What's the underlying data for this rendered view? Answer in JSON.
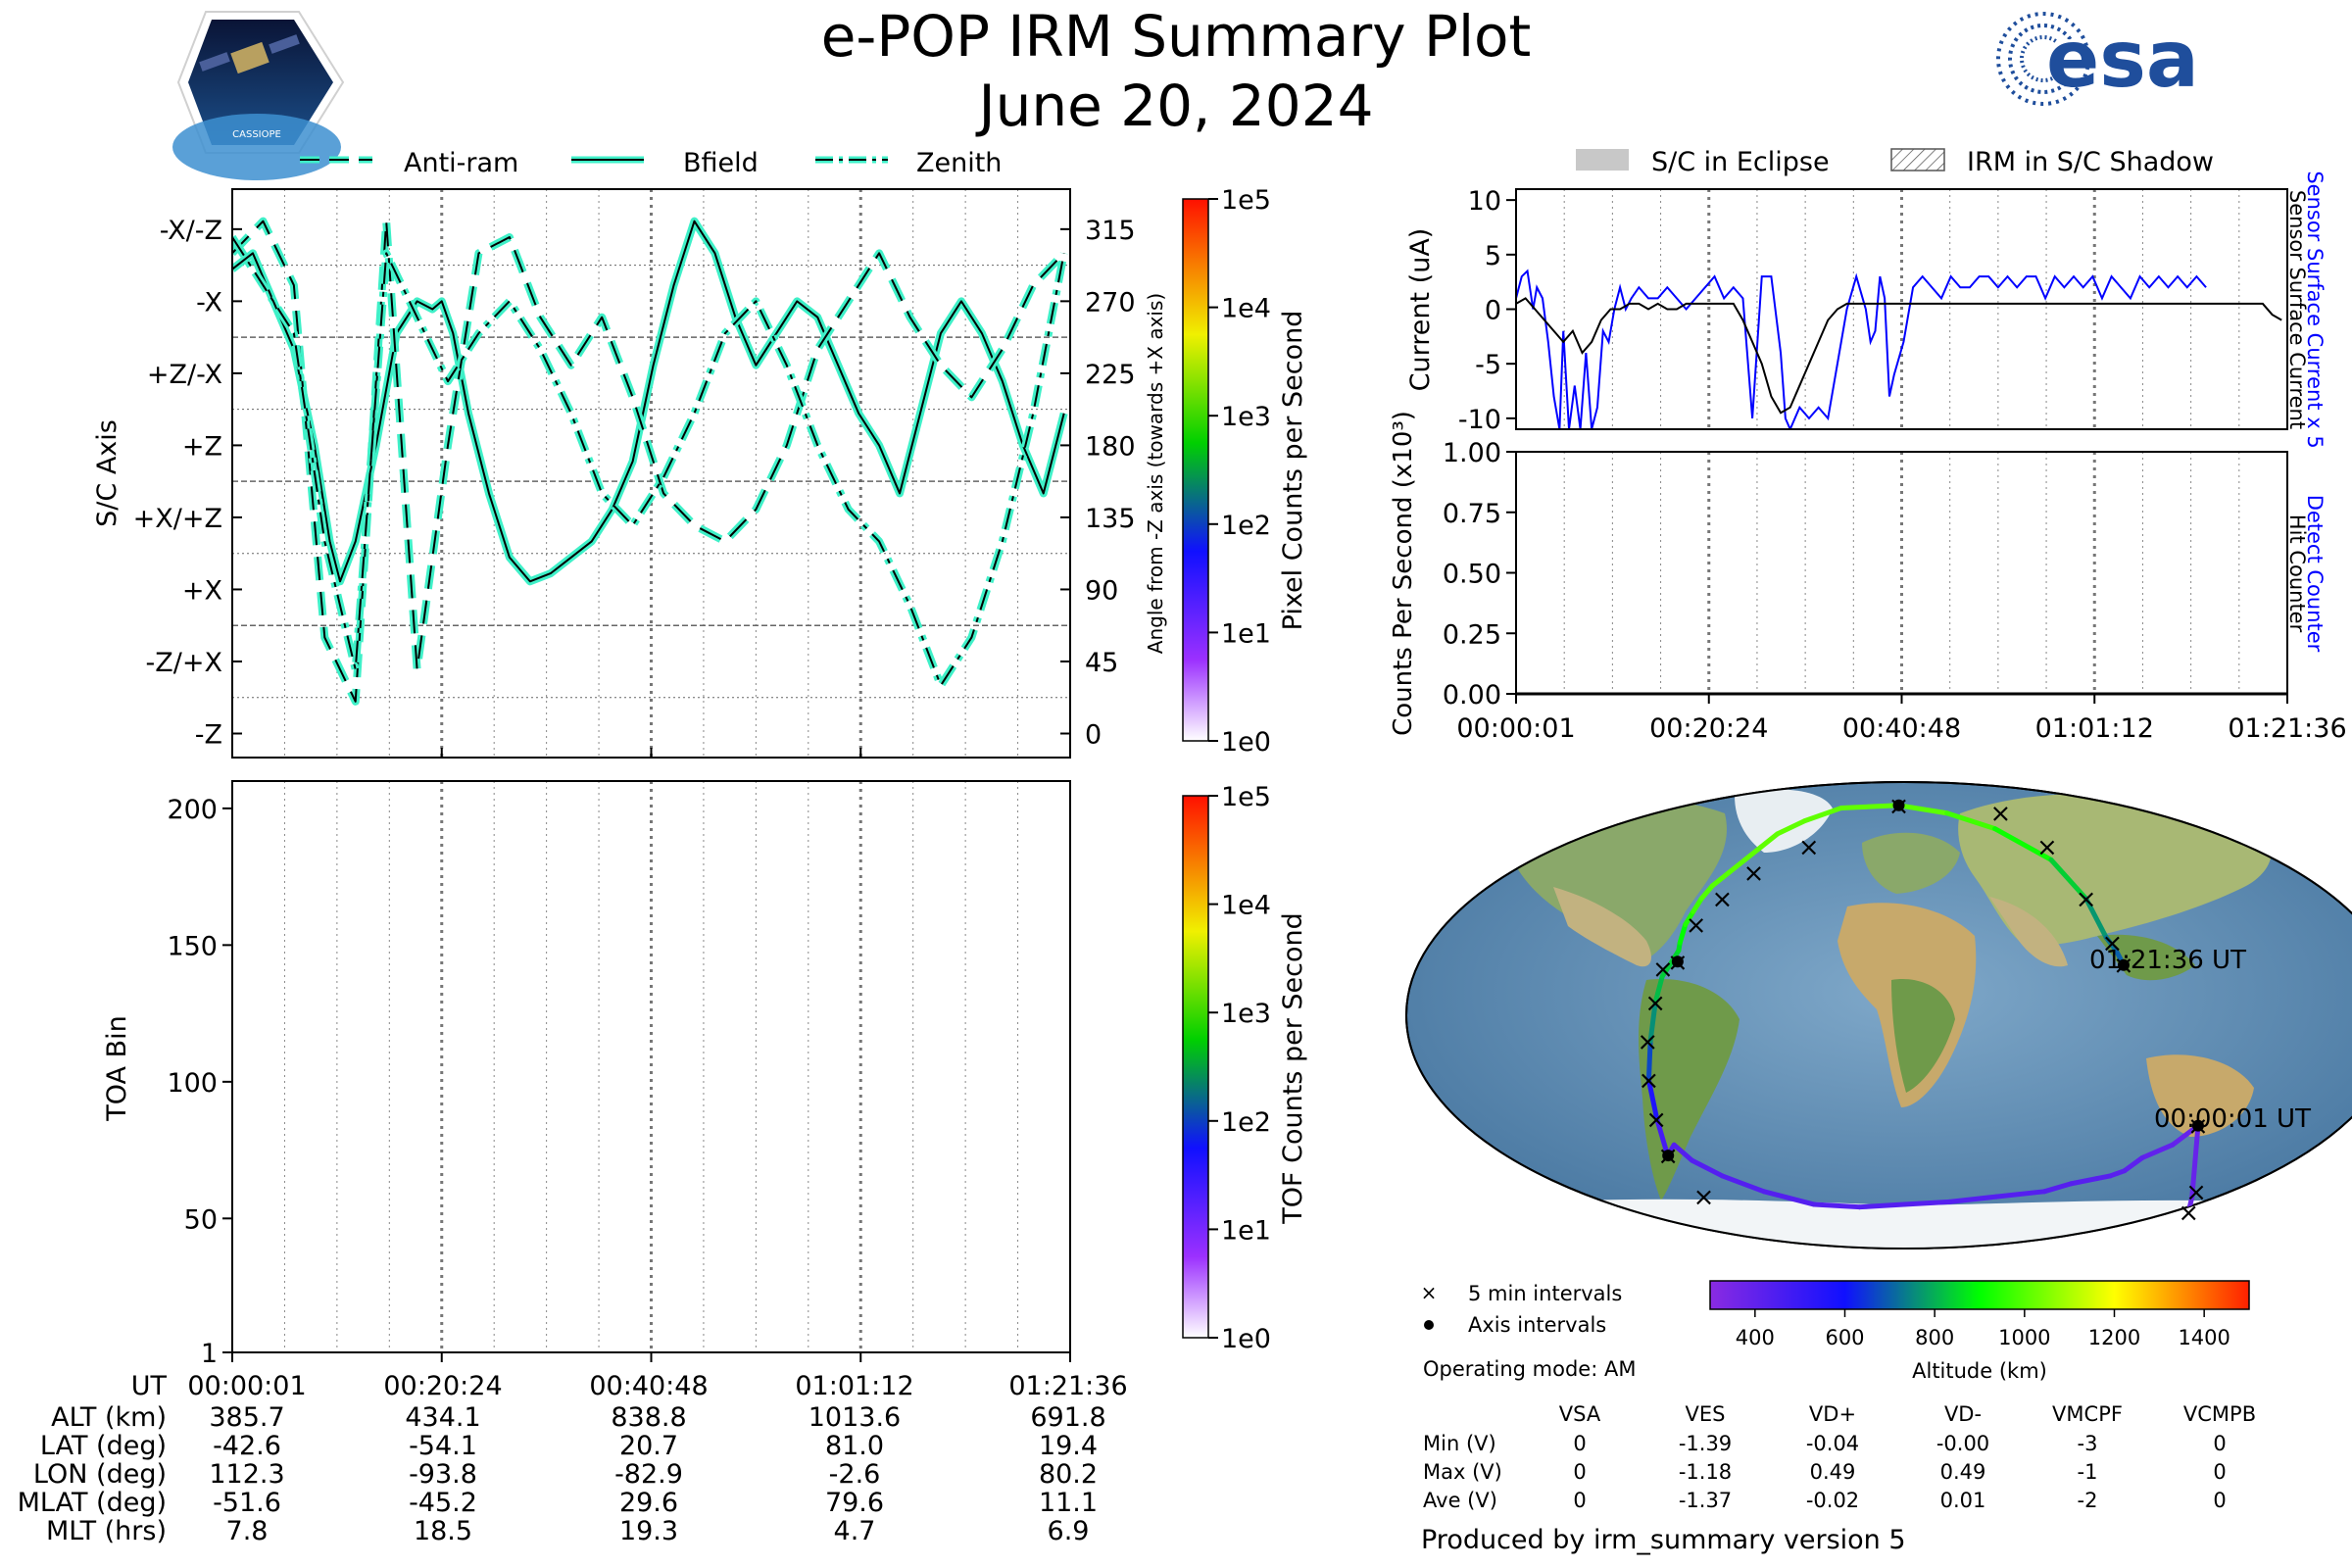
{
  "header": {
    "title": "e-POP IRM Summary Plot",
    "date": "June 20, 2024",
    "left_logo_text": "CASSIOPE",
    "right_logo_text": "esa"
  },
  "colors": {
    "trace": "#3ff0c8",
    "eclipse": "#c8c8c8",
    "sensor_current": "#0000ff",
    "hit_counter": "#000000"
  },
  "legend_top_left": [
    {
      "label": "Anti-ram",
      "style": "dashed"
    },
    {
      "label": "Bfield",
      "style": "solid"
    },
    {
      "label": "Zenith",
      "style": "dashdot"
    }
  ],
  "legend_top_right": [
    {
      "label": "S/C in Eclipse",
      "style": "filled"
    },
    {
      "label": "IRM in S/C Shadow",
      "style": "hatched"
    }
  ],
  "time_ticks": [
    "00:00:01",
    "00:20:24",
    "00:40:48",
    "01:01:12",
    "01:21:36"
  ],
  "chart_data": [
    {
      "type": "line",
      "name": "attitude",
      "ylabel": "S/C Axis",
      "ylabel_right": "Angle from -Z axis (towards +X axis)",
      "y_categories": [
        "-X/-Z",
        "-X",
        "+Z/-X",
        "+Z",
        "+X/+Z",
        "+X",
        "-Z/+X",
        "-Z"
      ],
      "y_right_ticks": [
        315,
        270,
        225,
        180,
        135,
        90,
        45,
        0
      ],
      "ylim": [
        -15,
        340
      ],
      "xlim": [
        0,
        81.6
      ],
      "colorbar_label": "Pixel Counts per Second",
      "colorbar_ticks": [
        "1e5",
        "1e4",
        "1e3",
        "1e2",
        "1e1",
        "1e0"
      ],
      "series": [
        {
          "name": "Bfield",
          "style": "solid",
          "x": [
            0,
            2,
            4,
            6,
            8,
            9.5,
            10.5,
            12,
            14,
            16,
            18,
            19.5,
            20.4,
            21.5,
            23,
            25,
            27,
            29,
            31,
            33,
            35,
            37,
            39,
            41,
            43,
            45,
            47,
            49,
            51,
            53,
            55,
            57,
            59,
            61,
            63,
            65,
            67,
            69,
            71,
            73,
            75,
            77,
            79,
            81
          ],
          "y": [
            290,
            300,
            270,
            240,
            180,
            120,
            95,
            120,
            180,
            250,
            270,
            265,
            270,
            250,
            200,
            150,
            110,
            95,
            100,
            110,
            120,
            140,
            170,
            230,
            280,
            320,
            300,
            260,
            230,
            250,
            270,
            260,
            230,
            200,
            180,
            150,
            200,
            250,
            270,
            250,
            220,
            180,
            150,
            200
          ]
        },
        {
          "name": "Anti-ram",
          "style": "dashed",
          "x": [
            0,
            3,
            6,
            9,
            12,
            15,
            18,
            21,
            24,
            27,
            30,
            33,
            36,
            39,
            42,
            45,
            48,
            51,
            54,
            57,
            60,
            63,
            66,
            69,
            72,
            75,
            78,
            81
          ],
          "y": [
            300,
            320,
            280,
            60,
            20,
            320,
            40,
            180,
            300,
            310,
            260,
            230,
            260,
            210,
            150,
            130,
            120,
            140,
            180,
            240,
            270,
            300,
            260,
            230,
            210,
            240,
            280,
            300
          ]
        },
        {
          "name": "Zenith",
          "style": "dashdot",
          "x": [
            0,
            3,
            6,
            9,
            12,
            15,
            18,
            21,
            24,
            27,
            30,
            33,
            36,
            39,
            42,
            45,
            48,
            51,
            54,
            57,
            60,
            63,
            66,
            69,
            72,
            75,
            78,
            81
          ],
          "y": [
            310,
            280,
            250,
            120,
            40,
            300,
            260,
            220,
            250,
            270,
            240,
            200,
            150,
            130,
            160,
            200,
            250,
            270,
            230,
            180,
            140,
            120,
            80,
            30,
            60,
            120,
            200,
            300
          ]
        }
      ]
    },
    {
      "type": "heatmap",
      "name": "tof",
      "ylabel": "TOA Bin",
      "y_ticks": [
        1,
        50,
        100,
        150,
        200
      ],
      "ylim": [
        1,
        210
      ],
      "xlim": [
        0,
        81.6
      ],
      "colorbar_label": "TOF Counts per Second",
      "colorbar_ticks": [
        "1e5",
        "1e4",
        "1e3",
        "1e2",
        "1e1",
        "1e0"
      ],
      "values": []
    },
    {
      "type": "line",
      "name": "current",
      "ylabel": "Current (uA)",
      "ylabel_right_1": "Sensor Surface Current x 5",
      "ylabel_right_2": "Sensor Surface Current",
      "y_ticks": [
        10,
        5,
        0,
        -5,
        -10
      ],
      "ylim": [
        -11,
        11
      ],
      "xlim": [
        0,
        81.6
      ],
      "series": [
        {
          "name": "Sensor Surface Current x 5",
          "color": "#0000ff",
          "x": [
            0,
            0.6,
            1.2,
            1.8,
            2.2,
            2.8,
            3.4,
            4.0,
            4.6,
            5.0,
            5.6,
            6.2,
            6.8,
            7.4,
            8.0,
            8.6,
            9.2,
            9.8,
            10.4,
            11.0,
            11.6,
            12.2,
            13.0,
            14.0,
            15.0,
            16.0,
            17.0,
            18.0,
            19.0,
            20.0,
            21.0,
            22.0,
            23.0,
            24.0,
            25.0,
            26.0,
            27.0,
            28.0,
            28.5,
            29.0,
            30.0,
            31.0,
            32.0,
            33.0,
            34.0,
            35.0,
            36.0,
            37.0,
            37.5,
            38.0,
            38.5,
            39.0,
            39.5,
            40.0,
            41.0,
            42.0,
            43.0,
            44.0,
            45.0,
            46.0,
            47.0,
            48.0,
            49.0,
            50.0,
            51.0,
            52.0,
            53.0,
            54.0,
            55.0,
            56.0,
            57.0,
            58.0,
            59.0,
            60.0,
            61.0,
            62.0,
            63.0,
            64.0,
            65.0,
            66.0,
            67.0,
            68.0,
            69.0,
            70.0,
            71.0,
            72.0,
            73.0
          ],
          "y": [
            1,
            3,
            3.5,
            0,
            2,
            1,
            -3,
            -8,
            -11,
            -2,
            -11,
            -7,
            -11,
            -4,
            -11,
            -9,
            -2,
            -3,
            0,
            2,
            0,
            1,
            2,
            1,
            1,
            2,
            1,
            0,
            1,
            2,
            3,
            1,
            2,
            1,
            -10,
            3,
            3,
            -4,
            -10,
            -11,
            -9,
            -10,
            -9,
            -10,
            -5,
            0,
            3,
            0,
            -3,
            -2,
            3,
            1,
            -8,
            -6,
            -3,
            2,
            3,
            2,
            1,
            3,
            2,
            2,
            3,
            3,
            2,
            3,
            2,
            3,
            3,
            1,
            3,
            2,
            3,
            2,
            3,
            1,
            3,
            2,
            1,
            3,
            2,
            3,
            2,
            3,
            2,
            3,
            2
          ]
        },
        {
          "name": "Sensor Surface Current",
          "color": "#000000",
          "x": [
            0,
            1,
            2,
            3,
            4,
            5,
            6,
            7,
            8,
            9,
            10,
            11,
            12,
            13,
            14,
            15,
            16,
            17,
            18,
            19,
            20,
            21,
            22,
            23,
            24,
            25,
            26,
            27,
            28,
            29,
            30,
            31,
            32,
            33,
            34,
            35,
            36,
            37,
            38,
            39,
            40,
            41,
            42,
            43,
            44,
            45,
            46,
            47,
            48,
            49,
            50,
            51,
            52,
            53,
            54,
            55,
            56,
            57,
            58,
            59,
            60,
            61,
            62,
            63,
            64,
            65,
            66,
            67,
            68,
            69,
            70,
            71,
            72,
            73,
            74,
            75,
            76,
            77,
            78,
            79,
            80,
            81
          ],
          "y": [
            0.5,
            1,
            0,
            -1,
            -2,
            -3,
            -2,
            -4,
            -3,
            -1,
            0,
            0,
            0.5,
            0.5,
            0,
            0.5,
            0,
            0,
            0.5,
            0.5,
            0.5,
            0.5,
            0.5,
            0.5,
            -1,
            -3,
            -5,
            -8,
            -9.5,
            -9,
            -7,
            -5,
            -3,
            -1,
            0,
            0.5,
            0.5,
            0.5,
            0.5,
            0.5,
            0.5,
            0.5,
            0.5,
            0.5,
            0.5,
            0.5,
            0.5,
            0.5,
            0.5,
            0.5,
            0.5,
            0.5,
            0.5,
            0.5,
            0.5,
            0.5,
            0.5,
            0.5,
            0.5,
            0.5,
            0.5,
            0.5,
            0.5,
            0.5,
            0.5,
            0.5,
            0.5,
            0.5,
            0.5,
            0.5,
            0.5,
            0.5,
            0.5,
            0.5,
            0.5,
            0.5,
            0.5,
            0.5,
            0.5,
            0.5,
            -0.5,
            -1
          ]
        }
      ]
    },
    {
      "type": "line",
      "name": "counts",
      "ylabel": "Counts Per Second (x10³)",
      "ylabel_right_1": "Detect Counter",
      "ylabel_right_2": "Hit Counter",
      "y_ticks": [
        1.0,
        0.75,
        0.5,
        0.25,
        0.0
      ],
      "ylim": [
        0,
        1
      ],
      "xlim": [
        0,
        81.6
      ],
      "series": [
        {
          "name": "Detect Counter",
          "color": "#0000ff",
          "x": [
            0,
            81.6
          ],
          "y": [
            0,
            0
          ]
        },
        {
          "name": "Hit Counter",
          "color": "#000000",
          "x": [
            0,
            81.6
          ],
          "y": [
            0,
            0
          ]
        }
      ]
    },
    {
      "type": "scatter",
      "name": "orbit_track",
      "x_label": "longitude",
      "y_label": "latitude",
      "start_label": "00:00:01 UT",
      "end_label": "01:21:36 UT",
      "colorbar_label": "Altitude (km)",
      "colorbar_ticks": [
        400,
        600,
        800,
        1000,
        1200,
        1400
      ],
      "colorbar_range": [
        300,
        1500
      ],
      "track": {
        "lon": [
          130,
          125,
          112.3,
          105,
          95,
          90,
          85,
          80,
          70,
          60,
          40,
          20,
          0,
          -20,
          -40,
          -60,
          -75,
          -85,
          -90,
          -94,
          -93.8,
          -94,
          -92,
          -90,
          -88,
          -85,
          -83,
          -82.9,
          -82,
          -80,
          -78,
          -75,
          -70,
          -65,
          -60,
          -55,
          -45,
          -30,
          -2.6,
          20,
          40,
          60,
          70,
          75,
          78,
          80.2
        ],
        "lat": [
          -76,
          -70,
          -42.6,
          -50,
          -55,
          -60,
          -62,
          -63,
          -65,
          -68,
          -70,
          -72,
          -73,
          -74,
          -73,
          -68,
          -62,
          -56,
          -50,
          -54.1,
          -40,
          -25,
          -10,
          5,
          15,
          20.7,
          25,
          28,
          35,
          40,
          45,
          50,
          55,
          60,
          65,
          70,
          75,
          80,
          81.0,
          78,
          72,
          60,
          45,
          30,
          25,
          19.4
        ],
        "alt": [
          380,
          385,
          385.7,
          395,
          405,
          415,
          420,
          425,
          428,
          430,
          430,
          430,
          430,
          430,
          432,
          434,
          434,
          434,
          434,
          434.1,
          500,
          620,
          720,
          800,
          830,
          838.8,
          850,
          880,
          920,
          960,
          990,
          1000,
          1005,
          1010,
          1012,
          1013,
          1013,
          1013,
          1013.6,
          1000,
          950,
          880,
          800,
          740,
          710,
          691.8
        ]
      },
      "five_min_marks": {
        "lon": [
          130,
          125,
          112.3,
          -87,
          -93.8,
          -94,
          -94,
          -93,
          -90,
          -88,
          -82.9,
          -78,
          -70,
          -60,
          -40,
          -2.6,
          45,
          60,
          70,
          77,
          80.2
        ],
        "lat": [
          -76,
          -68,
          -42.6,
          -70,
          -54.1,
          -40,
          -25,
          -10,
          5,
          18,
          20.7,
          35,
          45,
          55,
          65,
          81.0,
          78,
          65,
          45,
          28,
          19.4
        ]
      },
      "axis_marks": {
        "lon": [
          112.3,
          -93.8,
          -82.9,
          -2.6,
          80.2
        ],
        "lat": [
          -42.6,
          -54.1,
          20.7,
          81.0,
          19.4
        ]
      }
    }
  ],
  "map_legend": {
    "five_min": "5 min intervals",
    "axis": "Axis intervals",
    "operating_mode": "Operating mode: AM"
  },
  "ephemeris": {
    "ut_label": "UT",
    "rows": [
      {
        "label": "ALT (km)",
        "values": [
          "385.7",
          "434.1",
          "838.8",
          "1013.6",
          "691.8"
        ]
      },
      {
        "label": "LAT (deg)",
        "values": [
          "-42.6",
          "-54.1",
          "20.7",
          "81.0",
          "19.4"
        ]
      },
      {
        "label": "LON (deg)",
        "values": [
          "112.3",
          "-93.8",
          "-82.9",
          "-2.6",
          "80.2"
        ]
      },
      {
        "label": "MLAT (deg)",
        "values": [
          "-51.6",
          "-45.2",
          "29.6",
          "79.6",
          "11.1"
        ]
      },
      {
        "label": "MLT (hrs)",
        "values": [
          "7.8",
          "18.5",
          "19.3",
          "4.7",
          "6.9"
        ]
      }
    ]
  },
  "voltage_table": {
    "columns": [
      "VSA",
      "VES",
      "VD+",
      "VD-",
      "VMCPF",
      "VCMPB"
    ],
    "rows": [
      {
        "label": "Min (V)",
        "values": [
          "0",
          "-1.39",
          "-0.04",
          "-0.00",
          "-3",
          "0"
        ]
      },
      {
        "label": "Max (V)",
        "values": [
          "0",
          "-1.18",
          "0.49",
          "0.49",
          "-1",
          "0"
        ]
      },
      {
        "label": "Ave (V)",
        "values": [
          "0",
          "-1.37",
          "-0.02",
          "0.01",
          "-2",
          "0"
        ]
      }
    ]
  },
  "footer": "Produced by irm_summary version 5"
}
